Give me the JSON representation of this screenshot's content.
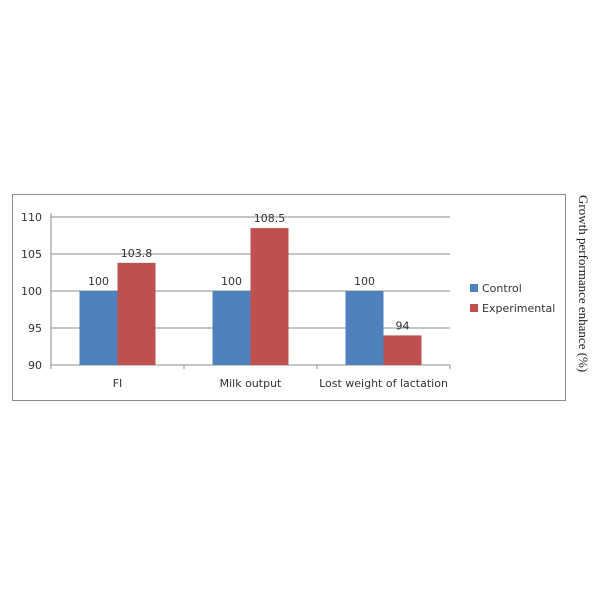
{
  "chart_data": {
    "type": "bar",
    "title": "",
    "xlabel": "",
    "ylabel": "Growth performance enhance (%)",
    "categories": [
      "FI",
      "Milk output",
      "Lost weight of lactation"
    ],
    "series": [
      {
        "name": "Control",
        "color": "#4f81bd",
        "values": [
          100,
          100,
          100
        ]
      },
      {
        "name": "Experimental",
        "color": "#c0504d",
        "values": [
          103.8,
          108.5,
          94
        ]
      }
    ],
    "data_labels": [
      [
        "100",
        "100",
        "100"
      ],
      [
        "103.8",
        "108.5",
        "94"
      ]
    ],
    "ylim": [
      90,
      110
    ],
    "yticks": [
      90,
      95,
      100,
      105,
      110
    ],
    "grid": true,
    "legend_position": "right"
  }
}
